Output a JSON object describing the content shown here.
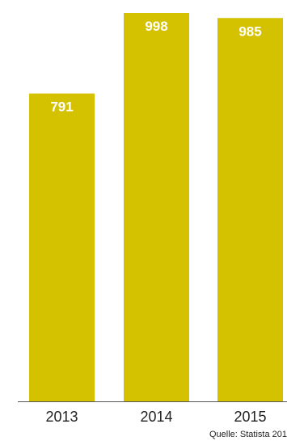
{
  "chart_data": {
    "type": "bar",
    "categories": [
      "2013",
      "2014",
      "2015"
    ],
    "values": [
      791,
      998,
      985
    ],
    "value_labels": [
      "791",
      "998",
      "985"
    ],
    "ylim": [
      0,
      998
    ],
    "grid": false,
    "bar_color": "#d4c200",
    "axis_color": "#555555",
    "source": "Quelle: Statista 201"
  }
}
